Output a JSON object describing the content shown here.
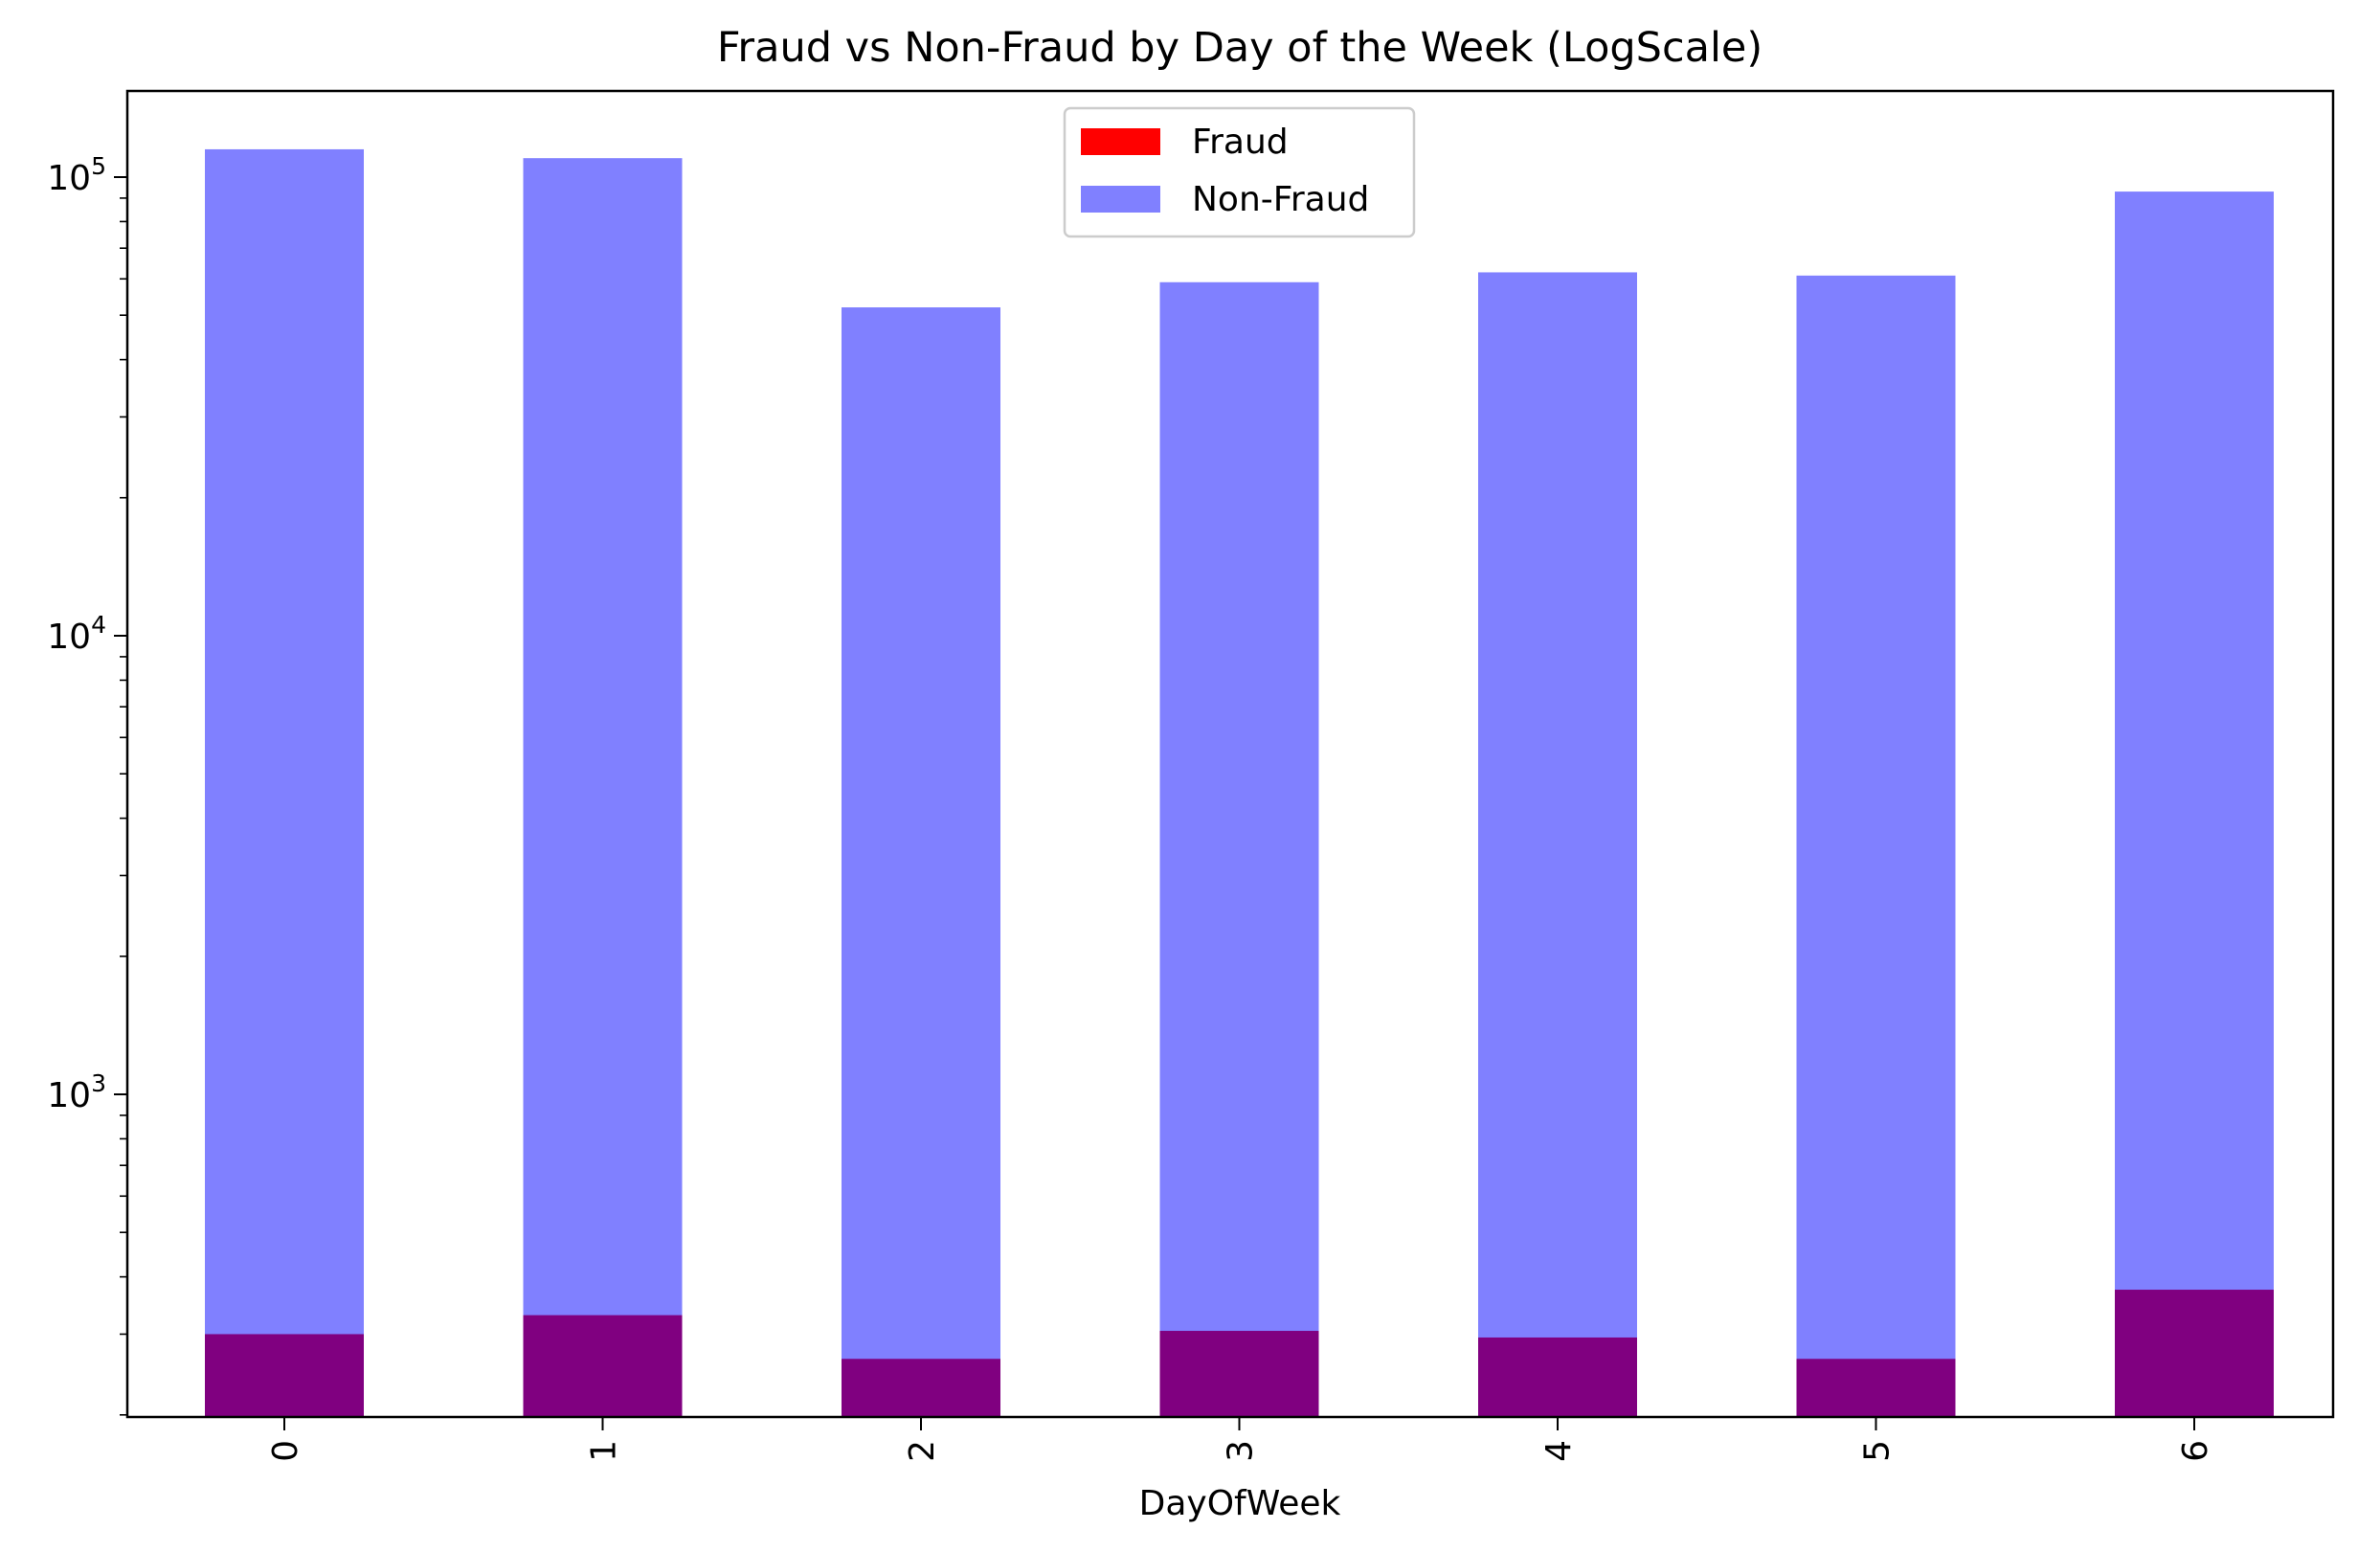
{
  "chart_data": {
    "type": "bar",
    "title": "Fraud vs Non-Fraud by Day of the Week (LogScale)",
    "xlabel": "DayOfWeek",
    "ylabel": "",
    "yscale": "log",
    "ylim": [
      200,
      160000
    ],
    "ytick_labels": [
      {
        "value": 1000,
        "base": "10",
        "exp": "3"
      },
      {
        "value": 10000,
        "base": "10",
        "exp": "4"
      },
      {
        "value": 100000,
        "base": "10",
        "exp": "5"
      }
    ],
    "categories": [
      "0",
      "1",
      "2",
      "3",
      "4",
      "5",
      "6"
    ],
    "series": [
      {
        "name": "Fraud",
        "color": "#ff0000",
        "values": [
          300,
          330,
          265,
          305,
          295,
          265,
          375
        ]
      },
      {
        "name": "Non-Fraud",
        "color": "#8080ff",
        "values": [
          115000,
          110000,
          52000,
          59000,
          62000,
          61000,
          93000
        ]
      }
    ],
    "overlap_color": "#800080",
    "legend_position": "top-center",
    "grid": false
  }
}
